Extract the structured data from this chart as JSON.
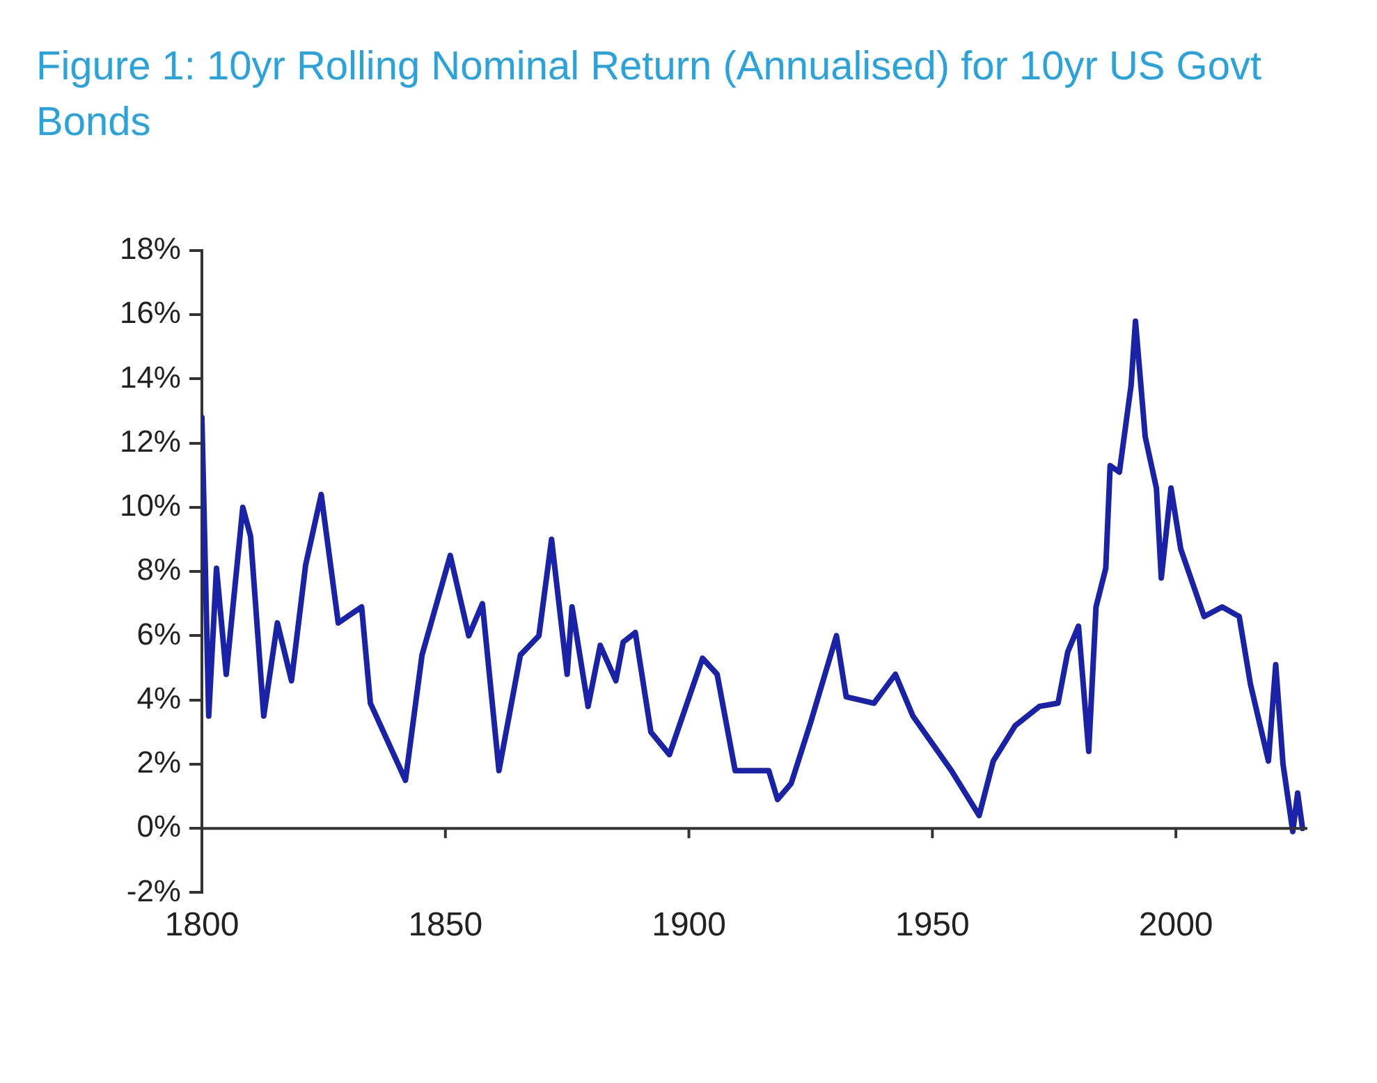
{
  "chart_data": {
    "type": "line",
    "title": "Figure 1: 10yr Rolling Nominal Return (Annualised) for 10yr US Govt Bonds",
    "x": [
      1800,
      1801.4,
      1803,
      1805,
      1808.4,
      1810,
      1812.7,
      1815.5,
      1818.4,
      1821.3,
      1824.5,
      1828,
      1832.8,
      1834.6,
      1841.8,
      1845.2,
      1851,
      1854.8,
      1857.6,
      1861,
      1865.4,
      1869.2,
      1871.8,
      1875,
      1876,
      1879.3,
      1881.8,
      1885,
      1886.5,
      1889,
      1892.2,
      1896,
      1902.8,
      1905.8,
      1909.5,
      1916.4,
      1918.2,
      1921,
      1925,
      1930.3,
      1932.3,
      1938,
      1942.4,
      1946,
      1953.9,
      1959.6,
      1962.5,
      1967,
      1972,
      1975.8,
      1977.8,
      1980,
      1982.1,
      1983.6,
      1985.6,
      1986.5,
      1988.4,
      1990.8,
      1991.7,
      1993.7,
      1996,
      1997,
      1999,
      2001,
      2005.8,
      2009.5,
      2013,
      2015.3,
      2019,
      2020.5,
      2022,
      2024,
      2025,
      2026
    ],
    "series": [
      {
        "color": "#1a22a8",
        "values": [
          12.8,
          3.5,
          8.1,
          4.8,
          10.0,
          9.1,
          3.5,
          6.4,
          4.6,
          8.2,
          10.4,
          6.4,
          6.9,
          3.9,
          1.5,
          5.4,
          8.5,
          6.0,
          7.0,
          1.8,
          5.4,
          6.0,
          9.0,
          4.8,
          6.9,
          3.8,
          5.7,
          4.6,
          5.8,
          6.1,
          3.0,
          2.3,
          5.3,
          4.8,
          1.8,
          1.8,
          0.9,
          1.4,
          3.3,
          6.0,
          4.1,
          3.9,
          4.8,
          3.5,
          1.8,
          0.4,
          2.1,
          3.2,
          3.8,
          3.9,
          5.5,
          6.3,
          2.4,
          6.9,
          8.1,
          11.3,
          11.1,
          13.8,
          15.8,
          12.2,
          10.6,
          7.8,
          10.6,
          8.7,
          6.6,
          6.9,
          6.6,
          4.5,
          2.1,
          5.1,
          2.0,
          -0.1,
          1.1,
          0.0
        ]
      }
    ],
    "xlim": [
      1800,
      2027
    ],
    "xticks": [
      1800,
      1850,
      1900,
      1950,
      2000
    ],
    "ylim": [
      -2,
      18
    ],
    "yticks": [
      {
        "value": -2,
        "label": "-2%"
      },
      {
        "value": 0,
        "label": "0%"
      },
      {
        "value": 2,
        "label": "2%"
      },
      {
        "value": 4,
        "label": "4%"
      },
      {
        "value": 6,
        "label": "6%"
      },
      {
        "value": 8,
        "label": "8%"
      },
      {
        "value": 10,
        "label": "10%"
      },
      {
        "value": 12,
        "label": "12%"
      },
      {
        "value": 14,
        "label": "14%"
      },
      {
        "value": 16,
        "label": "16%"
      },
      {
        "value": 18,
        "label": "18%"
      }
    ],
    "grid": false,
    "legend": false,
    "marker": "none",
    "line_style": "solid"
  }
}
